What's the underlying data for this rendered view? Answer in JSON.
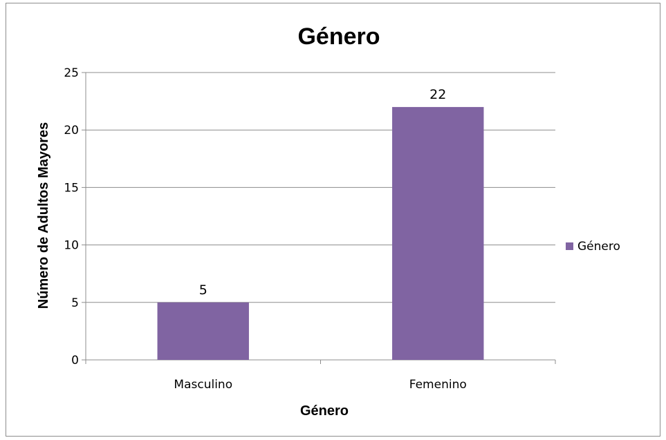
{
  "chart_data": {
    "type": "bar",
    "title": "Género",
    "xlabel": "Género",
    "ylabel": "Número de Adultos Mayores",
    "categories": [
      "Masculino",
      "Femenino"
    ],
    "series": [
      {
        "name": "Género",
        "values": [
          5,
          22
        ]
      }
    ],
    "data_labels": [
      "5",
      "22"
    ],
    "ylim": [
      0,
      25
    ],
    "yticks": [
      0,
      5,
      10,
      15,
      20,
      25
    ],
    "grid": true,
    "legend_position": "right",
    "bar_color": "#8064A2",
    "grid_color": "#8c8c8c"
  }
}
